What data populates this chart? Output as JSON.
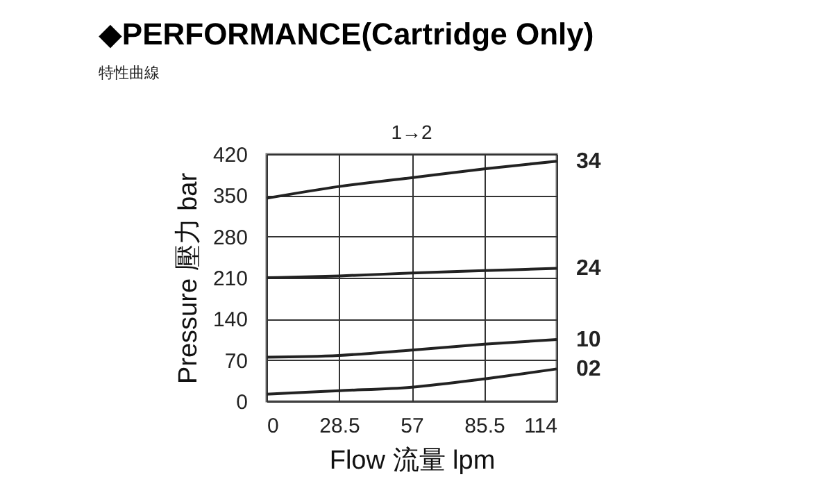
{
  "chart_data": {
    "type": "line",
    "title": "◆PERFORMANCE(Cartridge Only)",
    "subtitle": "特性曲線",
    "xlabel": "Flow 流量 lpm",
    "ylabel": "Pressure 壓力 bar",
    "annotations": [
      "1→2"
    ],
    "x": [
      0,
      28.5,
      57,
      85.5,
      114
    ],
    "series": [
      {
        "name": "34",
        "color": "#222222",
        "values": [
          345,
          365,
          380,
          395,
          408
        ]
      },
      {
        "name": "24",
        "color": "#222222",
        "values": [
          210,
          213,
          218,
          222,
          226
        ]
      },
      {
        "name": "10",
        "color": "#222222",
        "values": [
          75,
          78,
          87,
          97,
          105
        ]
      },
      {
        "name": "02",
        "color": "#222222",
        "values": [
          12,
          18,
          24,
          38,
          55
        ]
      }
    ],
    "xlim": [
      0,
      114
    ],
    "xticks": [
      0,
      28.5,
      57,
      85.5,
      114
    ],
    "ylim": [
      0,
      420
    ],
    "yticks": [
      0,
      70,
      140,
      210,
      280,
      350,
      420
    ],
    "grid": true,
    "legend": false,
    "marker": "none",
    "line_style": "solid"
  }
}
